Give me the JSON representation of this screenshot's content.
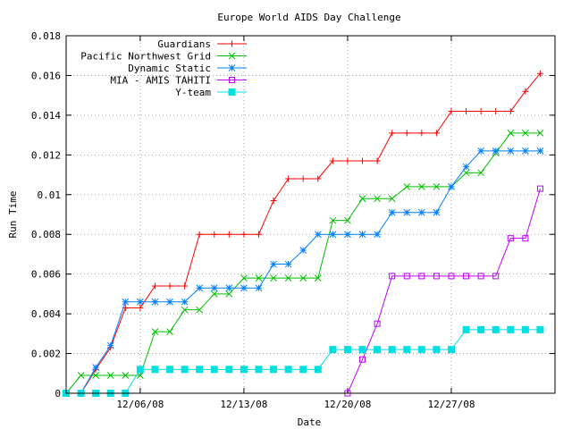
{
  "chart_data": {
    "type": "line",
    "title": "Europe World AIDS Day Challenge",
    "xlabel": "Date",
    "ylabel": "Run Time",
    "x_start_date": "2008-12-01",
    "x_range_days": [
      0,
      33
    ],
    "xticks": [
      {
        "label": "12/06/08",
        "day": 5
      },
      {
        "label": "12/13/08",
        "day": 12
      },
      {
        "label": "12/20/08",
        "day": 19
      },
      {
        "label": "12/27/08",
        "day": 26
      }
    ],
    "ylim": [
      0,
      0.018
    ],
    "yticks": [
      "0",
      "0.002",
      "0.004",
      "0.006",
      "0.008",
      "0.01",
      "0.012",
      "0.014",
      "0.016",
      "0.018"
    ],
    "ytick_values": [
      0,
      0.002,
      0.004,
      0.006,
      0.008,
      0.01,
      0.012,
      0.014,
      0.016,
      0.018
    ],
    "grid": true,
    "legend_position": "top-left",
    "series": [
      {
        "name": "Guardians",
        "color": "#ff0000",
        "marker": "plus",
        "x": [
          0,
          1,
          2,
          3,
          4,
          5,
          6,
          7,
          8,
          9,
          10,
          11,
          12,
          13,
          14,
          15,
          16,
          17,
          18,
          19,
          20,
          21,
          22,
          23,
          24,
          25,
          26,
          27,
          28,
          29,
          30,
          31,
          32
        ],
        "y": [
          0,
          0,
          0.0012,
          0.0023,
          0.0043,
          0.0043,
          0.0054,
          0.0054,
          0.0054,
          0.008,
          0.008,
          0.008,
          0.008,
          0.008,
          0.0097,
          0.0108,
          0.0108,
          0.0108,
          0.0117,
          0.0117,
          0.0117,
          0.0117,
          0.0131,
          0.0131,
          0.0131,
          0.0131,
          0.0142,
          0.0142,
          0.0142,
          0.0142,
          0.0142,
          0.0152,
          0.0161
        ]
      },
      {
        "name": "Pacific Northwest Grid",
        "color": "#00c000",
        "marker": "x",
        "x": [
          0,
          1,
          2,
          3,
          4,
          5,
          6,
          7,
          8,
          9,
          10,
          11,
          12,
          13,
          14,
          15,
          16,
          17,
          18,
          19,
          20,
          21,
          22,
          23,
          24,
          25,
          26,
          27,
          28,
          29,
          30,
          31,
          32
        ],
        "y": [
          0,
          0.0009,
          0.0009,
          0.0009,
          0.0009,
          0.0009,
          0.0031,
          0.0031,
          0.0042,
          0.0042,
          0.005,
          0.005,
          0.0058,
          0.0058,
          0.0058,
          0.0058,
          0.0058,
          0.0058,
          0.0087,
          0.0087,
          0.0098,
          0.0098,
          0.0098,
          0.0104,
          0.0104,
          0.0104,
          0.0104,
          0.0111,
          0.0111,
          0.0121,
          0.0131,
          0.0131,
          0.0131
        ]
      },
      {
        "name": "Dynamic Static",
        "color": "#0080ff",
        "marker": "star",
        "x": [
          0,
          1,
          2,
          3,
          4,
          5,
          6,
          7,
          8,
          9,
          10,
          11,
          12,
          13,
          14,
          15,
          16,
          17,
          18,
          19,
          20,
          21,
          22,
          23,
          24,
          25,
          26,
          27,
          28,
          29,
          30,
          31,
          32
        ],
        "y": [
          0,
          0,
          0.0013,
          0.0024,
          0.0046,
          0.0046,
          0.0046,
          0.0046,
          0.0046,
          0.0053,
          0.0053,
          0.0053,
          0.0053,
          0.0053,
          0.0065,
          0.0065,
          0.0072,
          0.008,
          0.008,
          0.008,
          0.008,
          0.008,
          0.0091,
          0.0091,
          0.0091,
          0.0091,
          0.0104,
          0.0114,
          0.0122,
          0.0122,
          0.0122,
          0.0122,
          0.0122
        ]
      },
      {
        "name": "MIA - AMIS TAHITI",
        "color": "#c000ff",
        "marker": "square-open",
        "x": [
          19,
          20,
          21,
          22,
          23,
          24,
          25,
          26,
          27,
          28,
          29,
          30,
          31,
          32
        ],
        "y": [
          0,
          0.0017,
          0.0035,
          0.0059,
          0.0059,
          0.0059,
          0.0059,
          0.0059,
          0.0059,
          0.0059,
          0.0059,
          0.0078,
          0.0078,
          0.0103
        ]
      },
      {
        "name": "Y-team",
        "color": "#00e0e0",
        "marker": "square-filled",
        "x": [
          0,
          1,
          2,
          3,
          4,
          5,
          6,
          7,
          8,
          9,
          10,
          11,
          12,
          13,
          14,
          15,
          16,
          17,
          18,
          19,
          20,
          21,
          22,
          23,
          24,
          25,
          26,
          27,
          28,
          29,
          30,
          31,
          32
        ],
        "y": [
          0,
          0,
          0,
          0,
          0,
          0.0012,
          0.0012,
          0.0012,
          0.0012,
          0.0012,
          0.0012,
          0.0012,
          0.0012,
          0.0012,
          0.0012,
          0.0012,
          0.0012,
          0.0012,
          0.0022,
          0.0022,
          0.0022,
          0.0022,
          0.0022,
          0.0022,
          0.0022,
          0.0022,
          0.0022,
          0.0032,
          0.0032,
          0.0032,
          0.0032,
          0.0032,
          0.0032
        ]
      }
    ]
  }
}
